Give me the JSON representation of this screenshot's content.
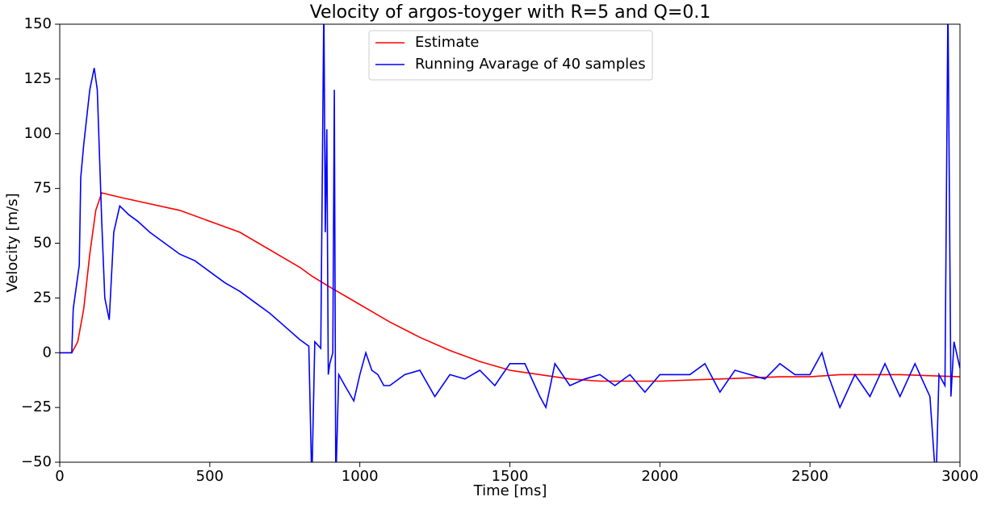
{
  "chart_data": {
    "type": "line",
    "title": "Velocity of argos-toyger with R=5 and Q=0.1",
    "xlabel": "Time [ms]",
    "ylabel": "Velocity [m/s]",
    "xlim": [
      0,
      3000
    ],
    "ylim": [
      -50,
      150
    ],
    "xticks": [
      0,
      500,
      1000,
      1500,
      2000,
      2500,
      3000
    ],
    "yticks": [
      {
        "value": -50,
        "label": "−50"
      },
      {
        "value": -25,
        "label": "−25"
      },
      0,
      25,
      50,
      75,
      100,
      125,
      150
    ],
    "legend": "upper center",
    "series": [
      {
        "name": "Estimate",
        "color": "#ff0000",
        "x": [
          0,
          40,
          60,
          80,
          100,
          120,
          140,
          200,
          400,
          600,
          800,
          840,
          900,
          1000,
          1100,
          1200,
          1300,
          1400,
          1500,
          1600,
          1700,
          1800,
          2000,
          2200,
          2400,
          2500,
          2600,
          2800,
          3000
        ],
        "values": [
          0,
          0,
          5,
          20,
          45,
          65,
          73,
          71,
          65,
          55,
          39,
          35,
          30,
          22,
          14,
          7,
          1,
          -4,
          -8,
          -10,
          -12,
          -13,
          -13,
          -12,
          -11,
          -11,
          -10,
          -10,
          -11
        ]
      },
      {
        "name": "Running Avarage of 40 samples",
        "color": "#0000ff",
        "x": [
          0,
          40,
          45,
          65,
          70,
          80,
          100,
          115,
          125,
          140,
          150,
          165,
          180,
          200,
          230,
          260,
          300,
          350,
          400,
          450,
          500,
          550,
          600,
          650,
          700,
          750,
          800,
          830,
          840,
          850,
          870,
          880,
          885,
          890,
          895,
          900,
          910,
          915,
          920,
          930,
          950,
          980,
          1000,
          1020,
          1040,
          1060,
          1080,
          1100,
          1150,
          1200,
          1250,
          1300,
          1350,
          1400,
          1450,
          1500,
          1550,
          1600,
          1620,
          1650,
          1700,
          1750,
          1800,
          1850,
          1900,
          1950,
          2000,
          2050,
          2100,
          2150,
          2200,
          2250,
          2300,
          2350,
          2400,
          2450,
          2500,
          2540,
          2560,
          2600,
          2650,
          2700,
          2750,
          2800,
          2850,
          2900,
          2920,
          2930,
          2950,
          2960,
          2970,
          2980,
          3000
        ],
        "values": [
          0,
          0,
          20,
          40,
          80,
          95,
          120,
          130,
          120,
          60,
          25,
          15,
          55,
          67,
          63,
          60,
          55,
          50,
          45,
          42,
          37,
          32,
          28,
          23,
          18,
          12,
          6,
          3,
          -60,
          5,
          2,
          160,
          55,
          102,
          -10,
          -5,
          0,
          120,
          -60,
          -10,
          -15,
          -22,
          -10,
          0,
          -8,
          -10,
          -15,
          -15,
          -10,
          -8,
          -20,
          -10,
          -12,
          -8,
          -15,
          -5,
          -5,
          -20,
          -25,
          -5,
          -15,
          -12,
          -10,
          -15,
          -10,
          -18,
          -10,
          -10,
          -10,
          -5,
          -18,
          -8,
          -10,
          -12,
          -5,
          -10,
          -10,
          0,
          -10,
          -25,
          -10,
          -20,
          -5,
          -20,
          -5,
          -20,
          -60,
          -10,
          -15,
          160,
          -20,
          5,
          -7
        ]
      }
    ]
  }
}
